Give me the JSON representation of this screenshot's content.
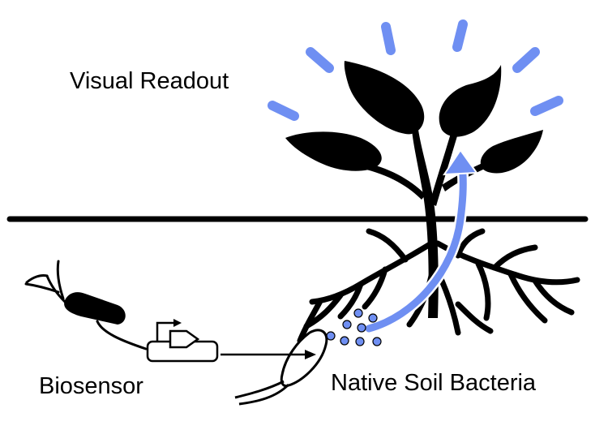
{
  "labels": {
    "visual_readout": "Visual Readout",
    "biosensor": "Biosensor",
    "native_soil_bacteria": "Native Soil Bacteria"
  },
  "colors": {
    "ink": "#000000",
    "signal": "#6f8ff2",
    "background": "#ffffff"
  },
  "icons": {
    "biosensor_bacterium": "rod-bacterium-icon",
    "genetic_circuit": "promoter-cds-plasmid-icon",
    "native_bacterium": "outlined-bacterium-icon",
    "plant": "plant-with-roots-icon",
    "glow": "glow-rays-icon"
  }
}
